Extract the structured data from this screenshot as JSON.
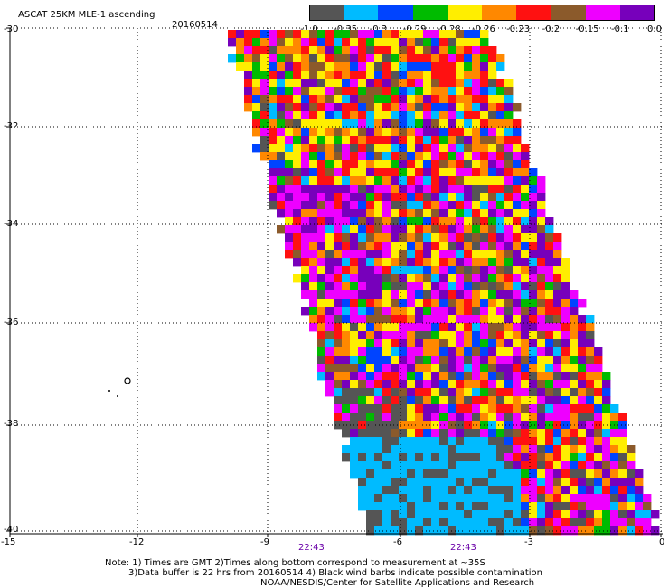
{
  "header": {
    "title": "ASCAT 25KM MLE-1 ascending",
    "date": "20160514"
  },
  "colorbar": {
    "colors": [
      "#555555",
      "#00bbff",
      "#0044ff",
      "#00bb00",
      "#ffee00",
      "#ff8800",
      "#ff1111",
      "#8b5a2b",
      "#ee00ff",
      "#7700bb"
    ],
    "labels": [
      "-1.0",
      "-0.35",
      "-0.3",
      "-0.29",
      "-0.28",
      "-0.26",
      "-0.23",
      "-0.2",
      "-0.15",
      "-0.1",
      "0.0"
    ]
  },
  "axes": {
    "lat_labels": [
      "-30",
      "-32",
      "-34",
      "-36",
      "-38",
      "-40"
    ],
    "lon_labels": [
      "-15",
      "-12",
      "-9",
      "-6",
      "-3",
      "0"
    ],
    "time_labels": [
      "22:43",
      "22:43"
    ]
  },
  "notes": {
    "line1": "Note: 1) Times are GMT 2)Times along bottom correspond to measurement at ~35S",
    "line2": "3)Data buffer is 22 hrs from 20160514 4) Black wind barbs indicate possible contamination",
    "line3": "NOAA/NESDIS/Center for Satellite Applications and Research"
  }
}
